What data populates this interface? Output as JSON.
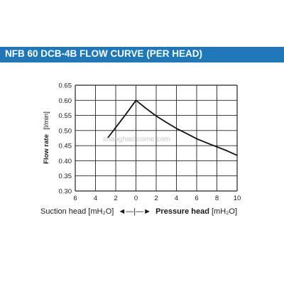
{
  "title": "NFB 60 DCB-4B FLOW CURVE (PER HEAD)",
  "colors": {
    "title_bar": "#1f76b8",
    "curve": "#111111",
    "grid": "#222222"
  },
  "watermark": "shanghaidicome.com",
  "bottom_labels": {
    "left": "Suction head [mH₂O]",
    "arrow": "◄—|—►",
    "right_bold": "Pressure head",
    "right_unit": "[mH₂O]"
  },
  "chart_data": {
    "type": "line",
    "title": "NFB 60 DCB-4B FLOW CURVE (PER HEAD)",
    "ylabel": "Flow rate",
    "ylabel_unit": "[l/min]",
    "xlabel": "Suction head [mH₂O]  ←|→  Pressure head [mH₂O]",
    "xticks": [
      "6",
      "4",
      "2",
      "0",
      "2",
      "4",
      "6",
      "8",
      "10"
    ],
    "yticks": [
      "0.65",
      "0.60",
      "0.55",
      "0.50",
      "0.45",
      "0.40",
      "0.35",
      "0.30"
    ],
    "xlim": [
      -6,
      10
    ],
    "ylim": [
      0.3,
      0.65
    ],
    "grid": true,
    "series": [
      {
        "x": [
          -2.8,
          -2.0,
          -1.2,
          -0.6,
          0,
          1,
          2,
          3,
          4,
          5,
          6,
          7,
          8,
          9,
          10
        ],
        "y": [
          0.475,
          0.51,
          0.545,
          0.572,
          0.6,
          0.573,
          0.548,
          0.527,
          0.507,
          0.49,
          0.473,
          0.459,
          0.446,
          0.433,
          0.418
        ]
      }
    ]
  }
}
